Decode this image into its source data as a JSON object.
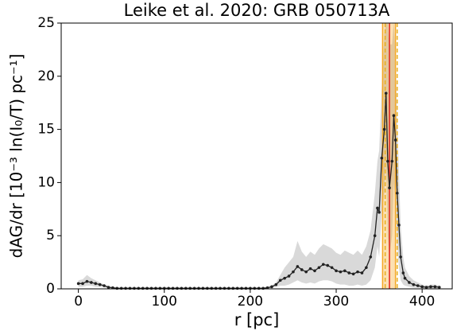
{
  "chart_data": {
    "type": "line",
    "title": "Leike et al. 2020: GRB 050713A",
    "xlabel": "r [pc]",
    "ylabel": "dAG/dr [10⁻³ ln(I₀/T) pc⁻¹]",
    "xlim": [
      -20,
      435
    ],
    "ylim": [
      0,
      25
    ],
    "xticks": [
      0,
      100,
      200,
      300,
      400
    ],
    "yticks": [
      0,
      5,
      10,
      15,
      20,
      25
    ],
    "x": [
      0,
      5,
      10,
      15,
      20,
      25,
      30,
      35,
      40,
      45,
      50,
      55,
      60,
      65,
      70,
      75,
      80,
      85,
      90,
      95,
      100,
      105,
      110,
      115,
      120,
      125,
      130,
      135,
      140,
      145,
      150,
      155,
      160,
      165,
      170,
      175,
      180,
      185,
      190,
      195,
      200,
      205,
      210,
      215,
      220,
      225,
      230,
      235,
      240,
      245,
      250,
      255,
      260,
      265,
      270,
      275,
      280,
      285,
      290,
      295,
      300,
      305,
      310,
      315,
      320,
      325,
      330,
      335,
      340,
      345,
      348,
      350,
      353,
      356,
      358,
      360,
      362,
      365,
      367,
      369,
      371,
      373,
      375,
      378,
      380,
      385,
      390,
      395,
      400,
      405,
      410,
      415,
      420
    ],
    "series": [
      {
        "color": "#222222",
        "band_color": "#d9d9d9",
        "values": [
          0.5,
          0.5,
          0.7,
          0.6,
          0.5,
          0.4,
          0.3,
          0.15,
          0.1,
          0.05,
          0.05,
          0.05,
          0.05,
          0.05,
          0.05,
          0.05,
          0.05,
          0.05,
          0.05,
          0.05,
          0.05,
          0.05,
          0.05,
          0.05,
          0.05,
          0.05,
          0.05,
          0.05,
          0.05,
          0.05,
          0.05,
          0.05,
          0.05,
          0.05,
          0.05,
          0.05,
          0.05,
          0.05,
          0.05,
          0.05,
          0.05,
          0.05,
          0.05,
          0.05,
          0.1,
          0.2,
          0.4,
          0.8,
          1.0,
          1.2,
          1.6,
          2.1,
          1.8,
          1.6,
          1.9,
          1.7,
          2.0,
          2.3,
          2.2,
          2.0,
          1.7,
          1.6,
          1.7,
          1.5,
          1.4,
          1.6,
          1.5,
          2.0,
          3.0,
          5.0,
          7.6,
          7.2,
          12.3,
          15,
          18.4,
          12,
          9.5,
          12,
          16.3,
          14,
          9,
          6,
          3,
          1.5,
          1.0,
          0.6,
          0.4,
          0.3,
          0.2,
          0.15,
          0.2,
          0.2,
          0.15
        ],
        "band_high": [
          0.8,
          0.9,
          1.3,
          1.0,
          0.8,
          0.6,
          0.4,
          0.25,
          0.15,
          0.1,
          0.1,
          0.1,
          0.1,
          0.1,
          0.1,
          0.1,
          0.1,
          0.1,
          0.1,
          0.1,
          0.1,
          0.1,
          0.1,
          0.1,
          0.1,
          0.1,
          0.1,
          0.1,
          0.1,
          0.1,
          0.1,
          0.1,
          0.1,
          0.1,
          0.1,
          0.1,
          0.1,
          0.1,
          0.1,
          0.1,
          0.1,
          0.1,
          0.1,
          0.1,
          0.15,
          0.3,
          0.6,
          1.3,
          2.0,
          2.5,
          3.0,
          4.5,
          3.5,
          3.0,
          3.5,
          3.2,
          3.8,
          4.2,
          4.0,
          3.8,
          3.4,
          3.2,
          3.6,
          3.4,
          3.2,
          3.6,
          3.2,
          4.0,
          5.5,
          9.0,
          12,
          13,
          19,
          24,
          25,
          25,
          23,
          23,
          25,
          22,
          16,
          11,
          6,
          3,
          2,
          1.2,
          0.8,
          0.6,
          0.4,
          0.3,
          0.4,
          0.4,
          0.3
        ],
        "band_low": [
          0.2,
          0.2,
          0.3,
          0.3,
          0.2,
          0.2,
          0.15,
          0.05,
          0.05,
          0.02,
          0.02,
          0.02,
          0.02,
          0.02,
          0.02,
          0.02,
          0.02,
          0.02,
          0.02,
          0.02,
          0.02,
          0.02,
          0.02,
          0.02,
          0.02,
          0.02,
          0.02,
          0.02,
          0.02,
          0.02,
          0.02,
          0.02,
          0.02,
          0.02,
          0.02,
          0.02,
          0.02,
          0.02,
          0.02,
          0.02,
          0.02,
          0.02,
          0.02,
          0.02,
          0.05,
          0.1,
          0.2,
          0.3,
          0.3,
          0.4,
          0.6,
          0.8,
          0.6,
          0.5,
          0.6,
          0.5,
          0.7,
          0.8,
          0.8,
          0.7,
          0.5,
          0.4,
          0.4,
          0.3,
          0.3,
          0.4,
          0.3,
          0.4,
          0.8,
          2.0,
          4,
          3,
          7,
          9,
          12,
          5,
          3,
          5,
          10,
          8,
          4,
          2,
          0.8,
          0.4,
          0.3,
          0.2,
          0.1,
          0.1,
          0.05,
          0.05,
          0.05,
          0.05,
          0.05
        ]
      }
    ],
    "shaded_region": {
      "range": [
        354,
        369
      ],
      "color": "#f5a623"
    },
    "vlines": [
      {
        "value": 362,
        "color": "#e0201b",
        "style": "solid"
      },
      {
        "value": 357,
        "color": "#e8b020",
        "style": "dashed"
      },
      {
        "value": 371,
        "color": "#e8b020",
        "style": "dashed"
      }
    ]
  }
}
